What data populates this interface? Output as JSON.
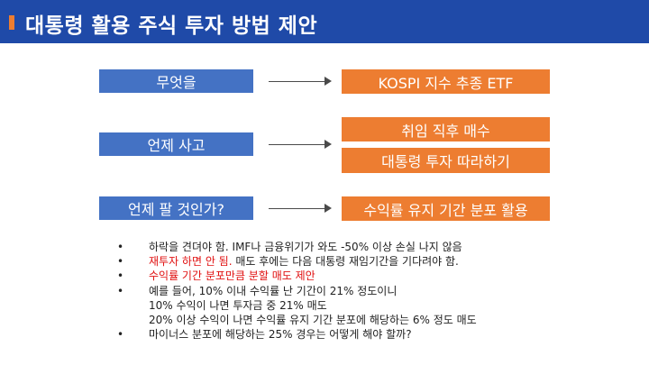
{
  "header": {
    "title": "대통령 활용 주식 투자 방법 제안"
  },
  "diagram": {
    "rows": [
      {
        "question": "무엇을",
        "answers": [
          "KOSPI 지수 추종 ETF"
        ]
      },
      {
        "question": "언제 사고",
        "answers": [
          "취임 직후 매수",
          "대통령 투자 따라하기"
        ]
      },
      {
        "question": "언제 팔 것인가?",
        "answers": [
          "수익률 유지 기간 분포 활용"
        ]
      }
    ]
  },
  "notes": [
    {
      "text": "하락을 견뎌야 함. IMF나 금융위기가 와도 -50% 이상 손실 나지 않음",
      "bullet": "•"
    },
    {
      "text": "재투자 하면 안 됨. 매도 후에는 다음 대통령 재임기간을 기다려야 함.",
      "red_part": "재투자 하면 안 됨.",
      "rest": " 매도 후에는 다음 대통령 재임기간을 기다려야 함.",
      "bullet": "•"
    },
    {
      "text": "수익률 기간 분포만큼 분할 매도 제안",
      "bullet": "•"
    },
    {
      "text": "예를 들어, 10% 이내 수익률 난 기간이 21% 정도이니",
      "bullet": "•"
    },
    {
      "text": "10% 수익이 나면 투자금 중 21% 매도"
    },
    {
      "text": "20% 이상 수익이 나면 수익률 유지 기간 분포에 해당하는 6% 정도 매도"
    },
    {
      "text": "마이너스 분포에 해당하는 25% 경우는 어떻게 해야 할까?",
      "bullet": "•"
    }
  ],
  "colors": {
    "header": "#1f4aa8",
    "accent": "#ed7d31",
    "question_box": "#4472c4",
    "answer_box": "#ed7d31",
    "highlight_text": "#e01010"
  }
}
